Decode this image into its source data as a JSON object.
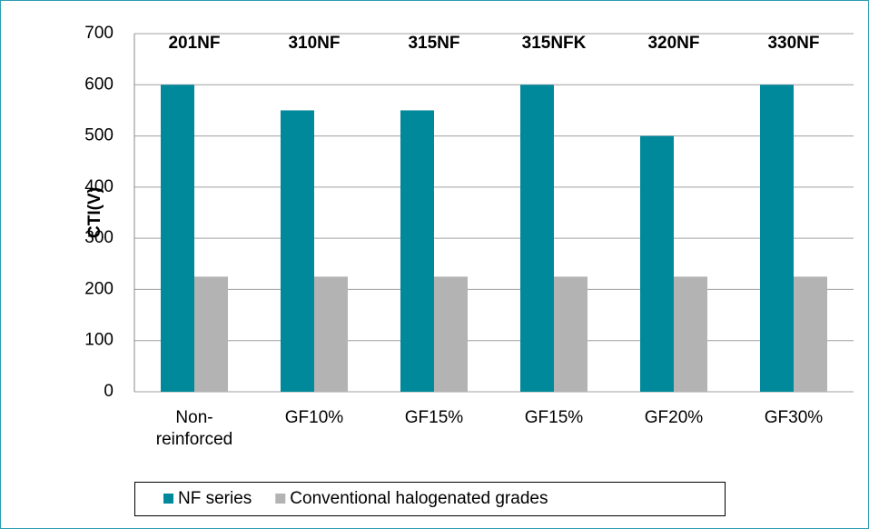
{
  "chart_data": {
    "type": "bar",
    "y_label": "CTI(V)",
    "categories": [
      "Non-reinforced",
      "GF10%",
      "GF15%",
      "GF15%",
      "GF20%",
      "GF30%"
    ],
    "annotations": [
      "201NF",
      "310NF",
      "315NF",
      "315NFK",
      "320NF",
      "330NF"
    ],
    "series": [
      {
        "name": "NF series",
        "color": "#00899a",
        "values": [
          600,
          550,
          550,
          600,
          500,
          600
        ]
      },
      {
        "name": "Conventional halogenated grades",
        "color": "#b3b3b3",
        "values": [
          225,
          225,
          225,
          225,
          225,
          225
        ]
      }
    ],
    "ylim": [
      0,
      700
    ],
    "yticks": [
      0,
      100,
      200,
      300,
      400,
      500,
      600,
      700
    ],
    "grid": true
  }
}
